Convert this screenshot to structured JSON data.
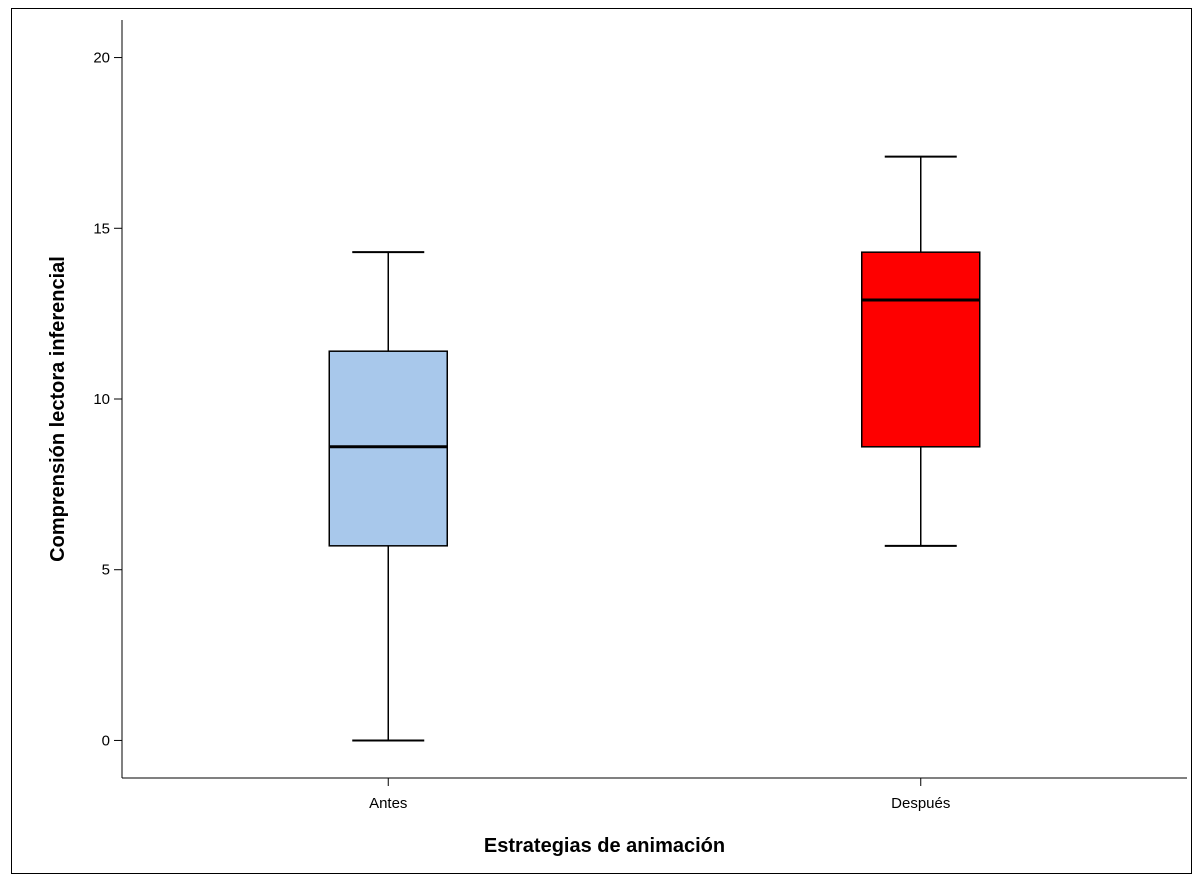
{
  "chart_data": {
    "type": "boxplot",
    "xlabel": "Estrategias de animación",
    "ylabel": "Comprensión lectora inferencial",
    "ylim": [
      -1.1,
      21.1
    ],
    "yticks": [
      0,
      5,
      10,
      15,
      20
    ],
    "categories": [
      "Antes",
      "Después"
    ],
    "boxes": [
      {
        "category": "Antes",
        "whisker_low": 0,
        "q1": 5.7,
        "median": 8.6,
        "q3": 11.4,
        "whisker_high": 14.3,
        "color": "#a8c8eb"
      },
      {
        "category": "Después",
        "whisker_low": 5.7,
        "q1": 8.6,
        "median": 12.9,
        "q3": 14.3,
        "whisker_high": 17.1,
        "color": "#fe0000"
      }
    ],
    "grid": false
  }
}
